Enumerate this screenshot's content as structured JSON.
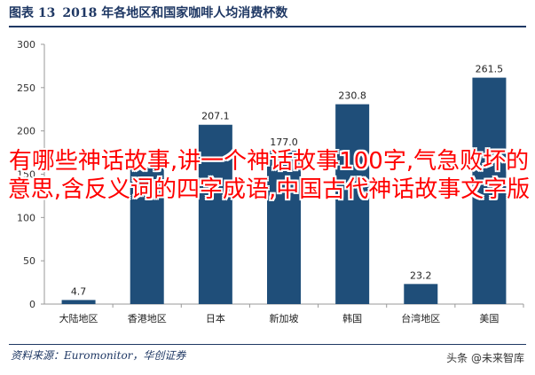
{
  "figure": {
    "label": "图表 13",
    "title": "2018 年各地区和国家咖啡人均消费杯数"
  },
  "source": "资料来源：Euromonitor，华创证券",
  "watermark": "头条 @未来智库",
  "overlay_text": "有哪些神话故事,讲一个神话故事100字,气急败坏的意思,含反义词的四字成语,中国古代神话故事文字版",
  "colors": {
    "bar": "#1f4e79",
    "header": "#1f3864",
    "overlay": "#ff0000"
  },
  "chart_data": {
    "type": "bar",
    "categories": [
      "大陆地区",
      "香港地区",
      "日本",
      "新加坡",
      "韩国",
      "台湾地区",
      "美国"
    ],
    "values": [
      4.7,
      157.6,
      207.1,
      177.0,
      230.8,
      23.2,
      261.5
    ],
    "data_labels": [
      "4.7",
      "",
      "207.1",
      "177.0",
      "230.8",
      "23.2",
      "261.5"
    ],
    "ylim": [
      0,
      300
    ],
    "yticks": [
      "0",
      "50",
      "100",
      "150",
      "200",
      "250",
      "300"
    ],
    "grid": false,
    "legend": "none"
  }
}
